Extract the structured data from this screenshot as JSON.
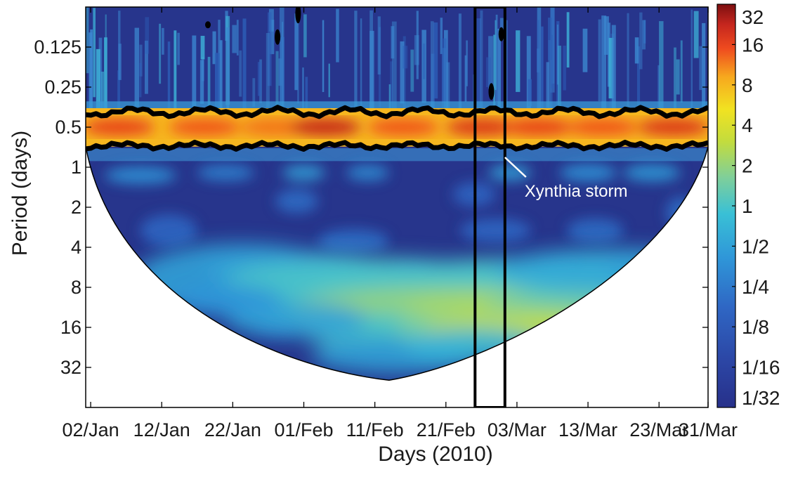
{
  "chart_data": {
    "type": "heatmap",
    "subtype": "wavelet power spectrum (scalogram)",
    "title": "",
    "xlabel": "Days (2010)",
    "ylabel": "Period (days)",
    "x_ticks": [
      "02/Jan",
      "12/Jan",
      "22/Jan",
      "01/Feb",
      "11/Feb",
      "21/Feb",
      "03/Mar",
      "13/Mar",
      "23/Mar",
      "31/Mar"
    ],
    "x_tick_days": [
      1,
      11,
      21,
      31,
      41,
      51,
      61,
      71,
      81,
      89
    ],
    "xlim_days": [
      0.3,
      87.9
    ],
    "y_scale": "log2",
    "y_reversed": true,
    "y_ticks": [
      "0.125",
      "0.25",
      "0.5",
      "1",
      "2",
      "4",
      "8",
      "16",
      "32"
    ],
    "y_tick_values": [
      0.125,
      0.25,
      0.5,
      1,
      2,
      4,
      8,
      16,
      32
    ],
    "ylim": [
      0.0625,
      64
    ],
    "colorbar": {
      "colormap": "jet",
      "scale": "log2",
      "labels": [
        "32",
        "16",
        "8",
        "4",
        "2",
        "1",
        "1/2",
        "1/4",
        "1/8",
        "1/16",
        "1/32"
      ],
      "values": [
        32,
        16,
        8,
        4,
        2,
        1,
        0.5,
        0.25,
        0.125,
        0.0625,
        0.03125
      ],
      "range": [
        0.03125,
        32
      ]
    },
    "power_regions": [
      {
        "period_range": [
          0.42,
          0.6
        ],
        "power": 16,
        "description": "semi-diurnal band, red/dark red along entire record"
      },
      {
        "period_range": [
          0.35,
          0.72
        ],
        "power": 8,
        "description": "significance contour (thick black) around semi-diurnal band"
      },
      {
        "period_range": [
          0.125,
          0.3
        ],
        "power": 0.0625,
        "description": "short periods, dark blue with cyan streaks"
      },
      {
        "period_range": [
          1,
          1.3
        ],
        "power": 0.5,
        "description": "diurnal band, light green patches"
      },
      {
        "period_range": [
          2,
          4
        ],
        "power": 0.0625,
        "description": "mostly dark blue"
      },
      {
        "period_range": [
          6,
          16
        ],
        "power": 1,
        "description": "green/yellow, max around late Feb - early Mar at ~12-16 days"
      }
    ],
    "cone_of_influence": {
      "peak_day": 43,
      "peak_period": 40,
      "left_edge_period": 0.7,
      "right_edge_period": 0.7
    },
    "highlight_box": {
      "x_range_days": [
        55.1,
        59.3
      ],
      "description": "rectangle around the storm period"
    },
    "annotations": [
      {
        "text": "Xynthia storm",
        "x_day": 59.5,
        "period": 1
      }
    ],
    "colors": {
      "semidiurnal": "#c9281c",
      "background_high_freq": "#26388f",
      "low_freq": "#c9d93a",
      "contour": "#000000"
    }
  }
}
